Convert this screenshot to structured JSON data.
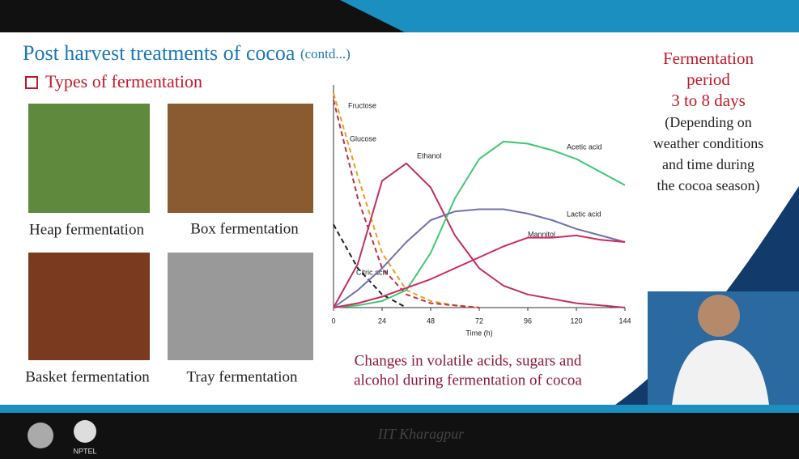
{
  "slide": {
    "title": "Post harvest treatments of cocoa",
    "title_suffix": "(contd...)",
    "heading": "Types of fermentation",
    "images": [
      {
        "caption": "Heap fermentation"
      },
      {
        "caption": "Box fermentation"
      },
      {
        "caption": "Basket fermentation"
      },
      {
        "caption": "Tray fermentation"
      }
    ],
    "side_text": [
      "Fermentation",
      "period",
      "3 to 8 days",
      "(Depending on",
      "weather conditions",
      "and time during",
      "the cocoa season)"
    ],
    "chart_caption": [
      "Changes in volatile acids, sugars and",
      "alcohol during fermentation of cocoa"
    ],
    "footer": {
      "institute": "IIT Kharagpur",
      "logo_text": "NPTEL"
    }
  },
  "chart_data": {
    "type": "line",
    "x_label": "Time (h)",
    "xlim": [
      0,
      144
    ],
    "xticks": [
      0,
      24,
      48,
      72,
      96,
      120,
      144
    ],
    "ylim": [
      0,
      100
    ],
    "x": [
      0,
      12,
      24,
      36,
      48,
      60,
      72,
      84,
      96,
      108,
      120,
      132,
      144
    ],
    "series": [
      {
        "name": "Fructose",
        "color": "#e8a020",
        "dashed": true,
        "values": [
          98,
          60,
          25,
          8,
          3,
          1,
          0,
          null,
          null,
          null,
          null,
          null,
          null
        ]
      },
      {
        "name": "Glucose",
        "color": "#c03040",
        "dashed": true,
        "values": [
          95,
          50,
          18,
          6,
          2,
          1,
          0,
          null,
          null,
          null,
          null,
          null,
          null
        ]
      },
      {
        "name": "Citric acid",
        "color": "#222222",
        "dashed": true,
        "values": [
          38,
          18,
          6,
          0,
          null,
          null,
          null,
          null,
          null,
          null,
          null,
          null,
          null
        ]
      },
      {
        "name": "Ethanol",
        "color": "#c0305a",
        "dashed": false,
        "values": [
          0,
          20,
          58,
          66,
          55,
          33,
          18,
          10,
          6,
          4,
          2,
          1,
          0
        ]
      },
      {
        "name": "Acetic acid",
        "color": "#3ec870",
        "dashed": false,
        "values": [
          0,
          1,
          3,
          8,
          25,
          50,
          68,
          76,
          75,
          72,
          68,
          62,
          56
        ]
      },
      {
        "name": "Lactic acid",
        "color": "#7070b0",
        "dashed": false,
        "values": [
          0,
          8,
          18,
          30,
          40,
          44,
          45,
          45,
          43,
          40,
          36,
          33,
          30
        ]
      },
      {
        "name": "Mannitol",
        "color": "#d02860",
        "dashed": false,
        "values": [
          0,
          2,
          5,
          9,
          13,
          18,
          23,
          28,
          32,
          32,
          33,
          31,
          30
        ]
      }
    ]
  }
}
